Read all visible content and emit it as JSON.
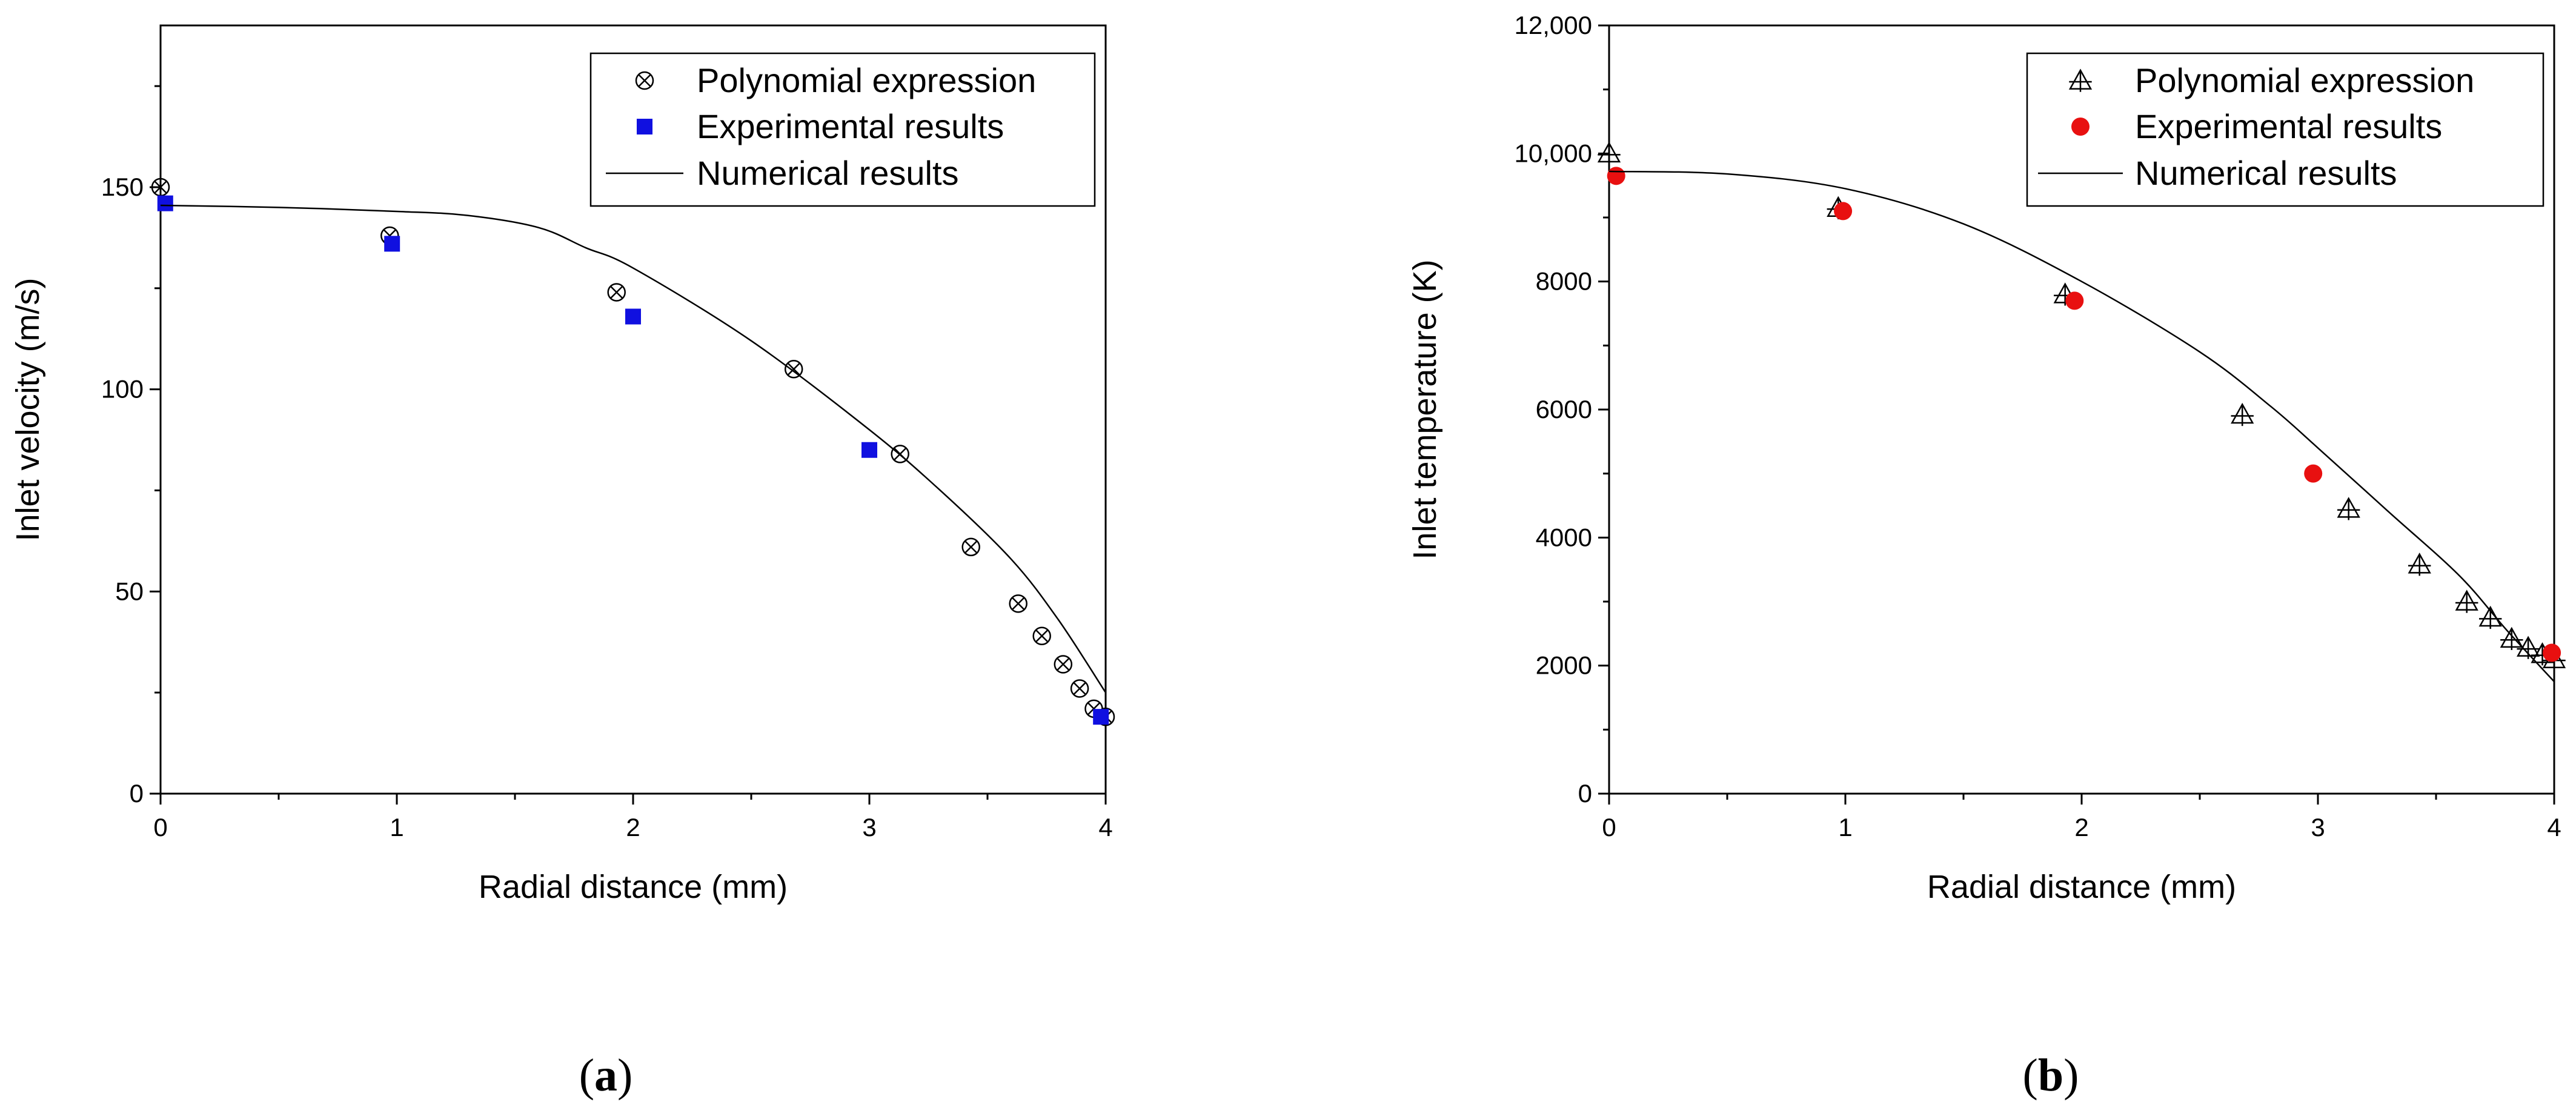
{
  "chart_data": [
    {
      "id": "a",
      "type": "scatter",
      "caption": {
        "open": "(",
        "letter": "a",
        "close": ")"
      },
      "xlabel": "Radial distance (mm)",
      "ylabel": "Inlet velocity (m/s)",
      "xlim": [
        0,
        4
      ],
      "ylim": [
        0,
        190
      ],
      "xticks": [
        0,
        1,
        2,
        3,
        4
      ],
      "xtick_labels": [
        "0",
        "1",
        "2",
        "3",
        "4"
      ],
      "yticks": [
        0,
        50,
        100,
        150
      ],
      "ytick_labels": [
        "0",
        "50",
        "100",
        "150"
      ],
      "legend_position": "top-right",
      "series": [
        {
          "name": "Polynomial expression",
          "marker": "circle-x",
          "color": "#000000",
          "x": [
            0.0,
            0.97,
            1.93,
            2.68,
            3.13,
            3.43,
            3.63,
            3.73,
            3.82,
            3.89,
            3.95,
            4.0
          ],
          "y": [
            150,
            138,
            124,
            105,
            84,
            61,
            47,
            39,
            32,
            26,
            21,
            19
          ]
        },
        {
          "name": "Experimental results",
          "marker": "square",
          "color": "#1010e0",
          "x": [
            0.02,
            0.98,
            2.0,
            3.0,
            3.98
          ],
          "y": [
            146,
            136,
            118,
            85,
            19
          ]
        },
        {
          "name": "Numerical results",
          "marker": "line",
          "color": "#000000",
          "x": [
            0.0,
            0.5,
            1.0,
            1.3,
            1.6,
            1.8,
            2.0,
            2.5,
            3.0,
            3.3,
            3.6,
            3.8,
            4.0
          ],
          "y": [
            145.5,
            145,
            144,
            143,
            140,
            135,
            130,
            112,
            90,
            75,
            58,
            43,
            25
          ]
        }
      ]
    },
    {
      "id": "b",
      "type": "scatter",
      "caption": {
        "open": "(",
        "letter": "b",
        "close": ")"
      },
      "xlabel": "Radial distance (mm)",
      "ylabel": "Inlet temperature (K)",
      "xlim": [
        0,
        4
      ],
      "ylim": [
        0,
        12000
      ],
      "xticks": [
        0,
        1,
        2,
        3,
        4
      ],
      "xtick_labels": [
        "0",
        "1",
        "2",
        "3",
        "4"
      ],
      "yticks": [
        0,
        2000,
        4000,
        6000,
        8000,
        10000,
        12000
      ],
      "ytick_labels": [
        "0",
        "2000",
        "4000",
        "6000",
        "8000",
        "10,000",
        "12,000"
      ],
      "legend_position": "top-right",
      "series": [
        {
          "name": "Polynomial expression",
          "marker": "triangle-plus",
          "color": "#000000",
          "x": [
            0.0,
            0.97,
            1.93,
            2.68,
            3.13,
            3.43,
            3.63,
            3.73,
            3.82,
            3.89,
            3.95,
            4.0
          ],
          "y": [
            10000,
            9150,
            7800,
            5920,
            4450,
            3580,
            3000,
            2750,
            2420,
            2280,
            2180,
            2100
          ]
        },
        {
          "name": "Experimental results",
          "marker": "circle",
          "color": "#e81010",
          "x": [
            0.03,
            0.99,
            1.97,
            2.98,
            3.99
          ],
          "y": [
            9650,
            9100,
            7700,
            5000,
            2200
          ]
        },
        {
          "name": "Numerical results",
          "marker": "line",
          "color": "#000000",
          "x": [
            0.0,
            0.5,
            1.0,
            1.5,
            2.0,
            2.5,
            2.8,
            3.0,
            3.3,
            3.6,
            3.8,
            4.0
          ],
          "y": [
            9720,
            9680,
            9450,
            8900,
            8000,
            6900,
            6050,
            5400,
            4400,
            3400,
            2550,
            1750
          ]
        }
      ]
    }
  ]
}
